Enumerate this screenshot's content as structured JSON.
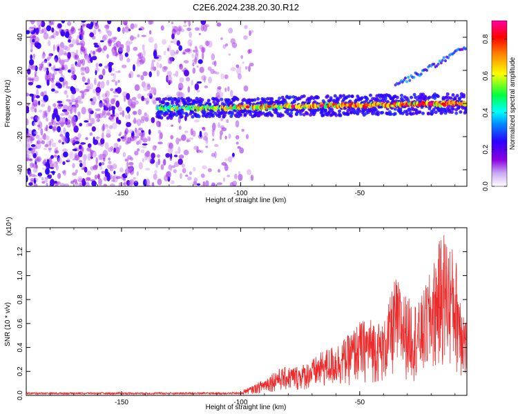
{
  "title": "C2E6.2024.238.20.30.R12",
  "colors": {
    "snr_line": "#ee2a2a",
    "axis": "#000000"
  },
  "chart_data": [
    {
      "type": "heatmap",
      "xlabel": "Height of straight line (km)",
      "ylabel": "Frequency (Hz)",
      "xlim": [
        -190,
        -5
      ],
      "ylim": [
        -50,
        50
      ],
      "x_ticks": [
        "-150",
        "-100",
        "-50"
      ],
      "x_tick_values": [
        -150,
        -100,
        -50
      ],
      "y_ticks": [
        "40",
        "20",
        "0",
        "-20",
        "-40"
      ],
      "y_tick_values": [
        40,
        20,
        0,
        -20,
        -40
      ],
      "colorbar": {
        "label": "Normalized spectral amplitude",
        "range": [
          0,
          0.9
        ],
        "ticks": [
          "0.0",
          "0.2",
          "0.4",
          "0.6",
          "0.8"
        ],
        "tick_values": [
          0.0,
          0.2,
          0.4,
          0.6,
          0.8
        ],
        "colormap": [
          "#ffffff",
          "#8a00e0",
          "#2000ff",
          "#00a0ff",
          "#00ffff",
          "#00ff40",
          "#ffff00",
          "#ff8000",
          "#ff0000",
          "#ff00a0"
        ]
      },
      "features": [
        {
          "name": "broadband noise",
          "x_range": [
            -190,
            -95
          ],
          "y_range": [
            -50,
            50
          ],
          "amplitude": 0.1
        },
        {
          "name": "main band",
          "x_range": [
            -135,
            -5
          ],
          "y_center_start": -3,
          "y_center_end": 0,
          "half_width": 4,
          "amplitude_range": [
            0.3,
            0.9
          ]
        },
        {
          "name": "rising harmonic",
          "x_range": [
            -35,
            -5
          ],
          "y_range": [
            12,
            35
          ],
          "amplitude": 0.25
        }
      ]
    },
    {
      "type": "line",
      "xlabel": "Height of straight line (km)",
      "ylabel": "SNR (10 * v/v)",
      "y_multiplier": "(x10⁴)",
      "xlim": [
        -190,
        -5
      ],
      "ylim": [
        0,
        1.4
      ],
      "x_ticks": [
        "-150",
        "-100",
        "-50"
      ],
      "x_tick_values": [
        -150,
        -100,
        -50
      ],
      "y_ticks": [
        "0.0",
        "0.2",
        "0.4",
        "0.6",
        "0.8",
        "1.0",
        "1.2"
      ],
      "y_tick_values": [
        0.0,
        0.2,
        0.4,
        0.6,
        0.8,
        1.0,
        1.2
      ],
      "series": [
        {
          "color": "#ee2a2a",
          "x": [
            -190,
            -180,
            -170,
            -160,
            -150,
            -140,
            -130,
            -120,
            -110,
            -100,
            -95,
            -90,
            -85,
            -80,
            -75,
            -70,
            -65,
            -60,
            -55,
            -50,
            -45,
            -40,
            -35,
            -30,
            -25,
            -20,
            -15,
            -10,
            -5
          ],
          "y_envelope": [
            0.02,
            0.02,
            0.02,
            0.02,
            0.02,
            0.02,
            0.02,
            0.02,
            0.03,
            0.04,
            0.08,
            0.14,
            0.22,
            0.24,
            0.25,
            0.3,
            0.38,
            0.43,
            0.5,
            0.62,
            0.65,
            0.6,
            1.0,
            0.82,
            0.78,
            1.05,
            1.4,
            1.2,
            0.6
          ]
        }
      ]
    }
  ]
}
